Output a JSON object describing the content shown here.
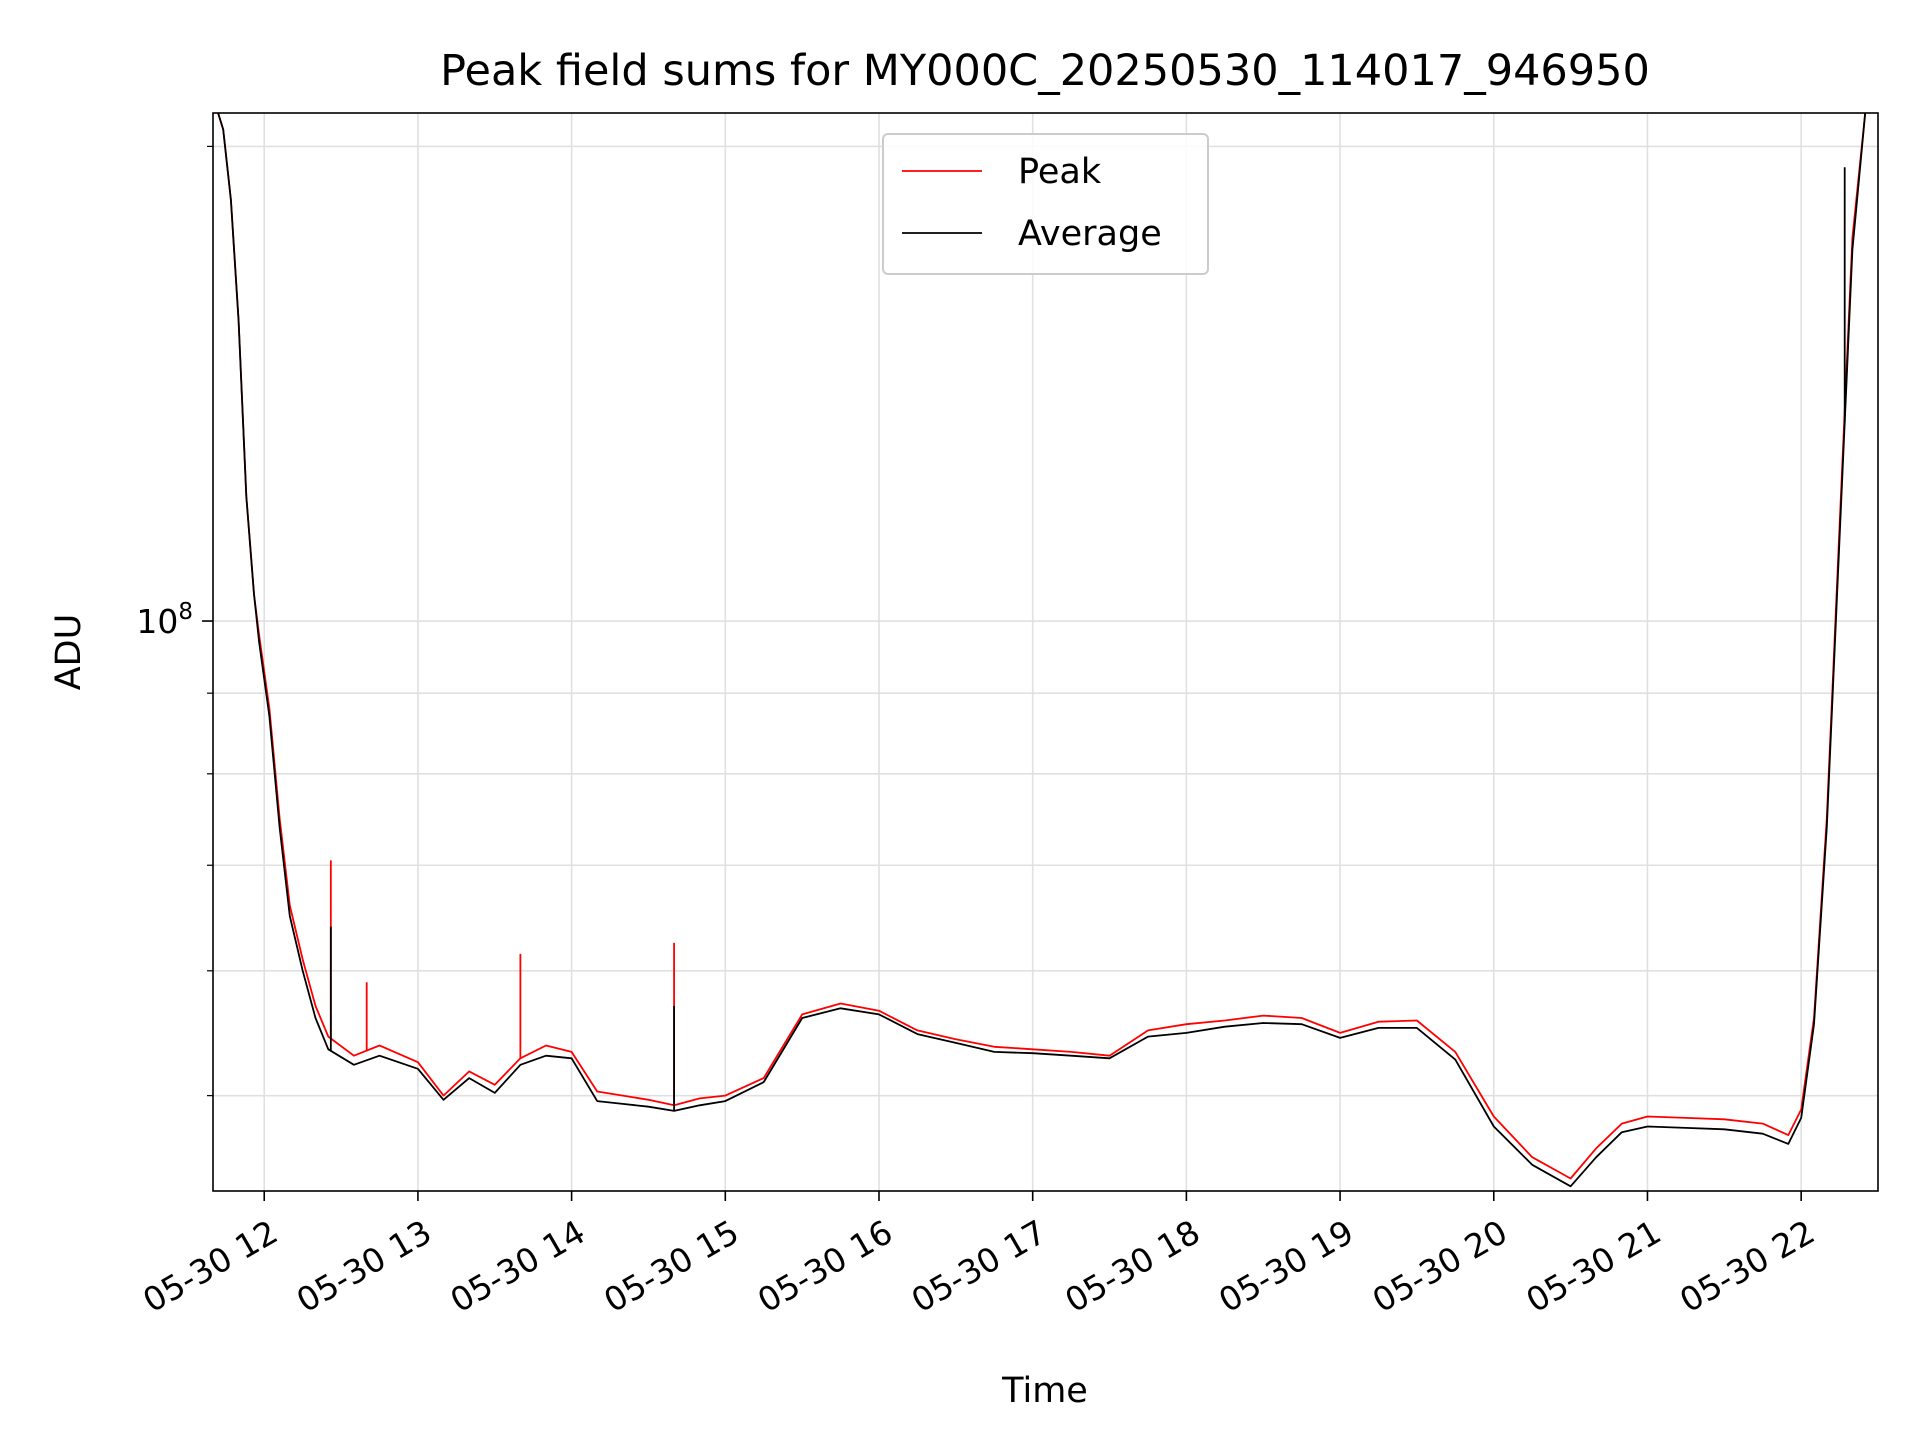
{
  "chart_data": {
    "type": "line",
    "title": "Peak field sums for MY000C_20250530_114017_946950",
    "xlabel": "Time",
    "ylabel": "ADU",
    "x_scale": "time",
    "y_scale": "log",
    "xlim": [
      "2025-05-30 11:40",
      "2025-05-30 22:30"
    ],
    "ylim": [
      43500000,
      210000000
    ],
    "x_ticks": [
      "05-30 12",
      "05-30 13",
      "05-30 14",
      "05-30 15",
      "05-30 16",
      "05-30 17",
      "05-30 18",
      "05-30 19",
      "05-30 20",
      "05-30 21",
      "05-30 22"
    ],
    "x_tick_times": [
      "2025-05-30 12:00",
      "2025-05-30 13:00",
      "2025-05-30 14:00",
      "2025-05-30 15:00",
      "2025-05-30 16:00",
      "2025-05-30 17:00",
      "2025-05-30 18:00",
      "2025-05-30 19:00",
      "2025-05-30 20:00",
      "2025-05-30 21:00",
      "2025-05-30 22:00"
    ],
    "y_major_ticks": [
      {
        "value": 100000000,
        "base": "10",
        "exp": "8"
      }
    ],
    "y_minor_ticks": [
      50000000,
      60000000,
      70000000,
      80000000,
      90000000,
      200000000
    ],
    "grid": true,
    "legend_position": "upper center",
    "series": [
      {
        "name": "Peak",
        "color": "#ff0000",
        "x": [
          "2025-05-30 11:42",
          "2025-05-30 11:44",
          "2025-05-30 11:47",
          "2025-05-30 11:50",
          "2025-05-30 11:53",
          "2025-05-30 11:56",
          "2025-05-30 11:58",
          "2025-05-30 12:02",
          "2025-05-30 12:06",
          "2025-05-30 12:10",
          "2025-05-30 12:15",
          "2025-05-30 12:20",
          "2025-05-30 12:25",
          "2025-05-30 12:35",
          "2025-05-30 12:45",
          "2025-05-30 13:00",
          "2025-05-30 13:10",
          "2025-05-30 13:20",
          "2025-05-30 13:30",
          "2025-05-30 13:40",
          "2025-05-30 13:50",
          "2025-05-30 14:00",
          "2025-05-30 14:10",
          "2025-05-30 14:20",
          "2025-05-30 14:30",
          "2025-05-30 14:40",
          "2025-05-30 14:50",
          "2025-05-30 15:00",
          "2025-05-30 15:15",
          "2025-05-30 15:30",
          "2025-05-30 15:45",
          "2025-05-30 16:00",
          "2025-05-30 16:15",
          "2025-05-30 16:30",
          "2025-05-30 16:45",
          "2025-05-30 17:00",
          "2025-05-30 17:15",
          "2025-05-30 17:30",
          "2025-05-30 17:45",
          "2025-05-30 18:00",
          "2025-05-30 18:15",
          "2025-05-30 18:30",
          "2025-05-30 18:45",
          "2025-05-30 19:00",
          "2025-05-30 19:15",
          "2025-05-30 19:30",
          "2025-05-30 19:45",
          "2025-05-30 20:00",
          "2025-05-30 20:15",
          "2025-05-30 20:30",
          "2025-05-30 20:40",
          "2025-05-30 20:50",
          "2025-05-30 21:00",
          "2025-05-30 21:15",
          "2025-05-30 21:30",
          "2025-05-30 21:45",
          "2025-05-30 21:55",
          "2025-05-30 22:00",
          "2025-05-30 22:05",
          "2025-05-30 22:10",
          "2025-05-30 22:15",
          "2025-05-30 22:20",
          "2025-05-30 22:25"
        ],
        "values": [
          210000000,
          205000000,
          185000000,
          155000000,
          120000000,
          104000000,
          98000000,
          88000000,
          75000000,
          66000000,
          61000000,
          57000000,
          54500000,
          53000000,
          53800000,
          52500000,
          50000000,
          51800000,
          50800000,
          52800000,
          53800000,
          53300000,
          50300000,
          50000000,
          49700000,
          49300000,
          49800000,
          50000000,
          51300000,
          56300000,
          57200000,
          56600000,
          55000000,
          54300000,
          53700000,
          53500000,
          53300000,
          53000000,
          55000000,
          55500000,
          55800000,
          56200000,
          56000000,
          54800000,
          55700000,
          55800000,
          53300000,
          48500000,
          45700000,
          44300000,
          46300000,
          48000000,
          48500000,
          48400000,
          48300000,
          48000000,
          47200000,
          49000000,
          56000000,
          75000000,
          115000000,
          175000000,
          210000000
        ]
      },
      {
        "name": "Average",
        "color": "#000000",
        "x": [
          "2025-05-30 11:42",
          "2025-05-30 11:44",
          "2025-05-30 11:47",
          "2025-05-30 11:50",
          "2025-05-30 11:53",
          "2025-05-30 11:56",
          "2025-05-30 11:58",
          "2025-05-30 12:02",
          "2025-05-30 12:06",
          "2025-05-30 12:10",
          "2025-05-30 12:15",
          "2025-05-30 12:20",
          "2025-05-30 12:25",
          "2025-05-30 12:35",
          "2025-05-30 12:45",
          "2025-05-30 13:00",
          "2025-05-30 13:10",
          "2025-05-30 13:20",
          "2025-05-30 13:30",
          "2025-05-30 13:40",
          "2025-05-30 13:50",
          "2025-05-30 14:00",
          "2025-05-30 14:10",
          "2025-05-30 14:20",
          "2025-05-30 14:30",
          "2025-05-30 14:40",
          "2025-05-30 14:50",
          "2025-05-30 15:00",
          "2025-05-30 15:15",
          "2025-05-30 15:30",
          "2025-05-30 15:45",
          "2025-05-30 16:00",
          "2025-05-30 16:15",
          "2025-05-30 16:30",
          "2025-05-30 16:45",
          "2025-05-30 17:00",
          "2025-05-30 17:15",
          "2025-05-30 17:30",
          "2025-05-30 17:45",
          "2025-05-30 18:00",
          "2025-05-30 18:15",
          "2025-05-30 18:30",
          "2025-05-30 18:45",
          "2025-05-30 19:00",
          "2025-05-30 19:15",
          "2025-05-30 19:30",
          "2025-05-30 19:45",
          "2025-05-30 20:00",
          "2025-05-30 20:15",
          "2025-05-30 20:30",
          "2025-05-30 20:40",
          "2025-05-30 20:50",
          "2025-05-30 21:00",
          "2025-05-30 21:15",
          "2025-05-30 21:30",
          "2025-05-30 21:45",
          "2025-05-30 21:55",
          "2025-05-30 22:00",
          "2025-05-30 22:05",
          "2025-05-30 22:10",
          "2025-05-30 22:15",
          "2025-05-30 22:20",
          "2025-05-30 22:25"
        ],
        "values": [
          210000000,
          205000000,
          185000000,
          155000000,
          120000000,
          104000000,
          97000000,
          87000000,
          74000000,
          65000000,
          60000000,
          56000000,
          53500000,
          52300000,
          53000000,
          52000000,
          49700000,
          51300000,
          50200000,
          52300000,
          53000000,
          52800000,
          49600000,
          49400000,
          49200000,
          48900000,
          49300000,
          49600000,
          51000000,
          56000000,
          56800000,
          56300000,
          54700000,
          54000000,
          53300000,
          53200000,
          53000000,
          52800000,
          54500000,
          54800000,
          55300000,
          55600000,
          55500000,
          54400000,
          55200000,
          55200000,
          52700000,
          47800000,
          45200000,
          43800000,
          45700000,
          47400000,
          47800000,
          47700000,
          47600000,
          47300000,
          46600000,
          48400000,
          55500000,
          74000000,
          113000000,
          172000000,
          210000000
        ]
      }
    ],
    "annotations": {
      "peak_spikes": [
        {
          "x": "2025-05-30 12:26",
          "value": 70500000
        },
        {
          "x": "2025-05-30 12:40",
          "value": 59000000
        },
        {
          "x": "2025-05-30 13:40",
          "value": 61500000
        },
        {
          "x": "2025-05-30 14:40",
          "value": 62500000
        }
      ],
      "average_spikes": [
        {
          "x": "2025-05-30 12:26",
          "value": 64000000
        },
        {
          "x": "2025-05-30 14:40",
          "value": 57000000
        },
        {
          "x": "2025-05-30 22:17",
          "value": 194000000
        }
      ]
    }
  }
}
